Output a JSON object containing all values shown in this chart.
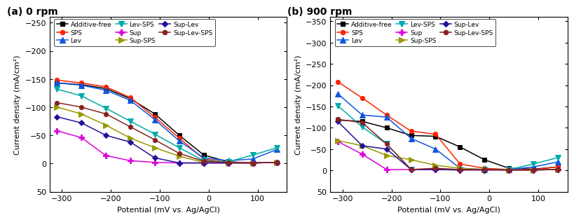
{
  "panel_a": {
    "title": "(a) 0 rpm",
    "ylim_bottom": 50,
    "ylim_top": -260,
    "yticks": [
      -250,
      -200,
      -150,
      -100,
      -50,
      0,
      50
    ],
    "series": {
      "Additive-free": {
        "x": [
          -310,
          -260,
          -210,
          -160,
          -110,
          -60,
          -10,
          40,
          90,
          140
        ],
        "y": [
          -143,
          -140,
          -133,
          -115,
          -88,
          -50,
          -15,
          -3,
          -1,
          -2
        ]
      },
      "SPS": {
        "x": [
          -310,
          -260,
          -210,
          -160,
          -110,
          -60,
          -10,
          40,
          90,
          140
        ],
        "y": [
          -148,
          -143,
          -136,
          -117,
          -82,
          -45,
          -8,
          -2,
          -1,
          -2
        ]
      },
      "Lev": {
        "x": [
          -310,
          -260,
          -210,
          -160,
          -110,
          -60,
          -10,
          40,
          90,
          140
        ],
        "y": [
          -143,
          -139,
          -130,
          -112,
          -78,
          -40,
          -10,
          -5,
          -8,
          -25
        ]
      },
      "Lev-SPS": {
        "x": [
          -310,
          -260,
          -210,
          -160,
          -110,
          -60,
          -10,
          40,
          90,
          140
        ],
        "y": [
          -132,
          -120,
          -98,
          -75,
          -52,
          -28,
          -5,
          -3,
          -15,
          -28
        ]
      },
      "Sup": {
        "x": [
          -310,
          -260,
          -210,
          -160,
          -110,
          -60,
          -10,
          40,
          90,
          140
        ],
        "y": [
          -58,
          -46,
          -14,
          -5,
          -2,
          -1,
          -1,
          -1,
          -1,
          -2
        ]
      },
      "Sup-SPS": {
        "x": [
          -310,
          -260,
          -210,
          -160,
          -110,
          -60,
          -10,
          40,
          90,
          140
        ],
        "y": [
          -100,
          -88,
          -68,
          -45,
          -28,
          -13,
          -2,
          -1,
          -1,
          -2
        ]
      },
      "Sup-Lev": {
        "x": [
          -310,
          -260,
          -210,
          -160,
          -110,
          -60,
          -10,
          40,
          90,
          140
        ],
        "y": [
          -83,
          -72,
          -50,
          -38,
          -10,
          -1,
          -1,
          -1,
          -1,
          -2
        ]
      },
      "Sup-Lev-SPS": {
        "x": [
          -310,
          -260,
          -210,
          -160,
          -110,
          -60,
          -10,
          40,
          90,
          140
        ],
        "y": [
          -108,
          -100,
          -88,
          -65,
          -42,
          -18,
          -4,
          -2,
          -1,
          -2
        ]
      }
    }
  },
  "panel_b": {
    "title": "(b) 900 rpm",
    "ylim_bottom": 50,
    "ylim_top": -360,
    "yticks": [
      -350,
      -300,
      -250,
      -200,
      -150,
      -100,
      -50,
      0,
      50
    ],
    "series": {
      "Additive-free": {
        "x": [
          -310,
          -260,
          -210,
          -160,
          -110,
          -60,
          -10,
          40,
          90,
          140
        ],
        "y": [
          -118,
          -115,
          -100,
          -82,
          -80,
          -55,
          -25,
          -5,
          -3,
          -8
        ]
      },
      "SPS": {
        "x": [
          -310,
          -260,
          -210,
          -160,
          -110,
          -60,
          -10,
          40,
          90,
          140
        ],
        "y": [
          -208,
          -170,
          -130,
          -92,
          -85,
          -15,
          -5,
          -2,
          -2,
          -8
        ]
      },
      "Lev": {
        "x": [
          -310,
          -260,
          -210,
          -160,
          -110,
          -60,
          -10,
          40,
          90,
          140
        ],
        "y": [
          -180,
          -130,
          -125,
          -75,
          -50,
          -5,
          -2,
          -2,
          -8,
          -20
        ]
      },
      "Lev-SPS": {
        "x": [
          -310,
          -260,
          -210,
          -160,
          -110,
          -60,
          -10,
          40,
          90,
          140
        ],
        "y": [
          -152,
          -102,
          -62,
          -2,
          -2,
          -2,
          -2,
          -2,
          -15,
          -30
        ]
      },
      "Sup": {
        "x": [
          -310,
          -260,
          -210,
          -160,
          -110,
          -60,
          -10,
          40,
          90,
          140
        ],
        "y": [
          -68,
          -38,
          -2,
          -2,
          -2,
          -1,
          -1,
          -1,
          -1,
          -2
        ]
      },
      "Sup-SPS": {
        "x": [
          -310,
          -260,
          -210,
          -160,
          -110,
          -60,
          -10,
          40,
          90,
          140
        ],
        "y": [
          -70,
          -58,
          -35,
          -25,
          -12,
          -5,
          -2,
          -1,
          -1,
          -2
        ]
      },
      "Sup-Lev": {
        "x": [
          -310,
          -260,
          -210,
          -160,
          -110,
          -60,
          -10,
          40,
          90,
          140
        ],
        "y": [
          -115,
          -58,
          -50,
          -2,
          -2,
          -1,
          -1,
          -1,
          -1,
          -2
        ]
      },
      "Sup-Lev-SPS": {
        "x": [
          -310,
          -260,
          -210,
          -160,
          -110,
          -60,
          -10,
          40,
          90,
          140
        ],
        "y": [
          -120,
          -112,
          -62,
          -2,
          -5,
          -2,
          -2,
          -1,
          -1,
          -2
        ]
      }
    }
  },
  "xlabel": "Potential (mV vs. Ag/AgCl)",
  "ylabel": "Current density (mA/cm²)",
  "xticks": [
    -300,
    -200,
    -100,
    0,
    100
  ],
  "xlim": [
    -325,
    160
  ],
  "legend_order": [
    "Additive-free",
    "SPS",
    "Lev",
    "Lev-SPS",
    "Sup",
    "Sup-SPS",
    "Sup-Lev",
    "Sup-Lev-SPS"
  ]
}
